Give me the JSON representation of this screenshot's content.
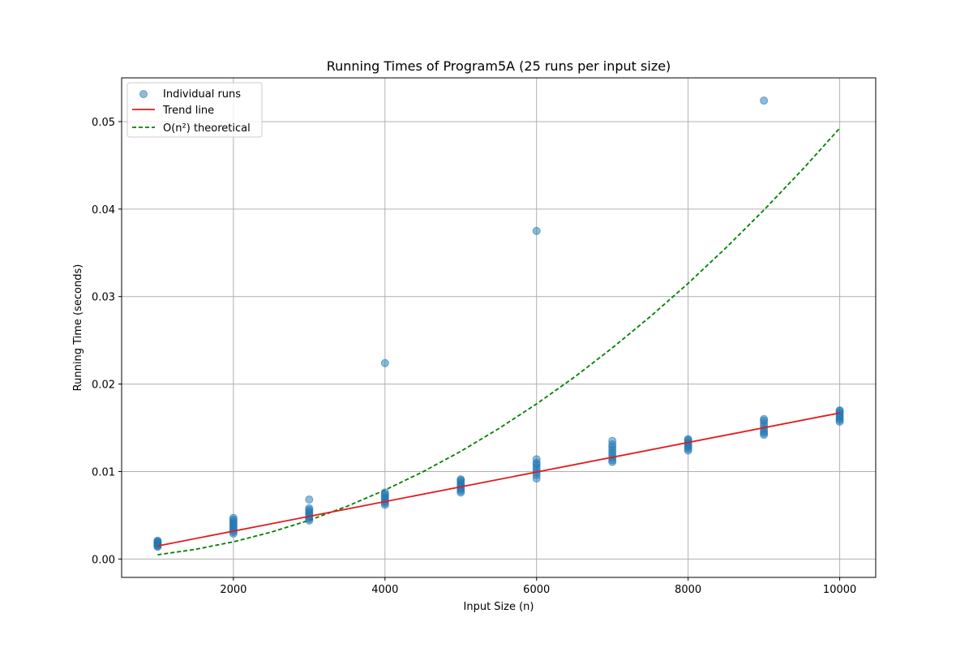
{
  "colors": {
    "points": "#1f77b4",
    "trend": "#e41a1c",
    "theory": "#008000",
    "grid": "#b0b0b0",
    "axis": "#000000"
  },
  "chart_data": {
    "type": "scatter",
    "title": "Running Times of Program5A (25 runs per input size)",
    "xlabel": "Input Size (n)",
    "ylabel": "Running Time (seconds)",
    "xlim": [
      525,
      10475
    ],
    "ylim": [
      -0.0021,
      0.055
    ],
    "xticks": [
      2000,
      4000,
      6000,
      8000,
      10000
    ],
    "yticks": [
      0.0,
      0.01,
      0.02,
      0.03,
      0.04,
      0.05
    ],
    "grid": true,
    "legend_position": "upper left",
    "legend": [
      {
        "label": "Individual runs",
        "kind": "marker"
      },
      {
        "label": "Trend line",
        "kind": "solid"
      },
      {
        "label": "O(n²) theoretical",
        "kind": "dashed"
      }
    ],
    "series": [
      {
        "name": "Individual runs",
        "type": "scatter",
        "x": [
          1000,
          1000,
          1000,
          1000,
          1000,
          1000,
          1000,
          1000,
          2000,
          2000,
          2000,
          2000,
          2000,
          2000,
          2000,
          2000,
          2000,
          2000,
          3000,
          3000,
          3000,
          3000,
          3000,
          3000,
          3000,
          3000,
          3000,
          4000,
          4000,
          4000,
          4000,
          4000,
          4000,
          4000,
          4000,
          4000,
          5000,
          5000,
          5000,
          5000,
          5000,
          5000,
          5000,
          5000,
          5000,
          6000,
          6000,
          6000,
          6000,
          6000,
          6000,
          6000,
          6000,
          6000,
          7000,
          7000,
          7000,
          7000,
          7000,
          7000,
          7000,
          7000,
          7000,
          8000,
          8000,
          8000,
          8000,
          8000,
          8000,
          8000,
          8000,
          9000,
          9000,
          9000,
          9000,
          9000,
          9000,
          9000,
          9000,
          9000,
          10000,
          10000,
          10000,
          10000,
          10000,
          10000,
          10000,
          10000
        ],
        "y": [
          0.0014,
          0.0015,
          0.0016,
          0.0017,
          0.0018,
          0.0019,
          0.002,
          0.0021,
          0.0029,
          0.0031,
          0.0033,
          0.0035,
          0.0037,
          0.0039,
          0.0041,
          0.0043,
          0.0045,
          0.0047,
          0.0044,
          0.0046,
          0.0048,
          0.005,
          0.0052,
          0.0054,
          0.0056,
          0.0058,
          0.0068,
          0.0062,
          0.0064,
          0.0066,
          0.0068,
          0.007,
          0.0072,
          0.0074,
          0.0076,
          0.0224,
          0.0076,
          0.0078,
          0.008,
          0.0082,
          0.0084,
          0.0086,
          0.0088,
          0.009,
          0.0091,
          0.0092,
          0.0096,
          0.0099,
          0.0102,
          0.0105,
          0.0108,
          0.011,
          0.0114,
          0.0375,
          0.0111,
          0.0113,
          0.0116,
          0.0119,
          0.0122,
          0.0125,
          0.0128,
          0.0131,
          0.0135,
          0.0124,
          0.0126,
          0.0128,
          0.013,
          0.0132,
          0.0134,
          0.0136,
          0.0137,
          0.0142,
          0.0144,
          0.0146,
          0.0149,
          0.0152,
          0.0155,
          0.0158,
          0.016,
          0.0524,
          0.0157,
          0.0159,
          0.0161,
          0.0163,
          0.0165,
          0.0167,
          0.0169,
          0.017
        ]
      },
      {
        "name": "Trend line",
        "type": "line",
        "x": [
          1000,
          10000
        ],
        "y": [
          0.0015,
          0.0167
        ]
      },
      {
        "name": "O(n²) theoretical",
        "type": "line",
        "style": "dashed",
        "x": [
          1000,
          1500,
          2000,
          2500,
          3000,
          3500,
          4000,
          4500,
          5000,
          5500,
          6000,
          6500,
          7000,
          7500,
          8000,
          8500,
          9000,
          9500,
          10000
        ],
        "y": [
          0.00049,
          0.00111,
          0.00197,
          0.00308,
          0.00443,
          0.00603,
          0.00788,
          0.00997,
          0.01231,
          0.0149,
          0.01773,
          0.0208,
          0.02413,
          0.0277,
          0.03151,
          0.03558,
          0.03989,
          0.04444,
          0.04924
        ]
      }
    ]
  }
}
